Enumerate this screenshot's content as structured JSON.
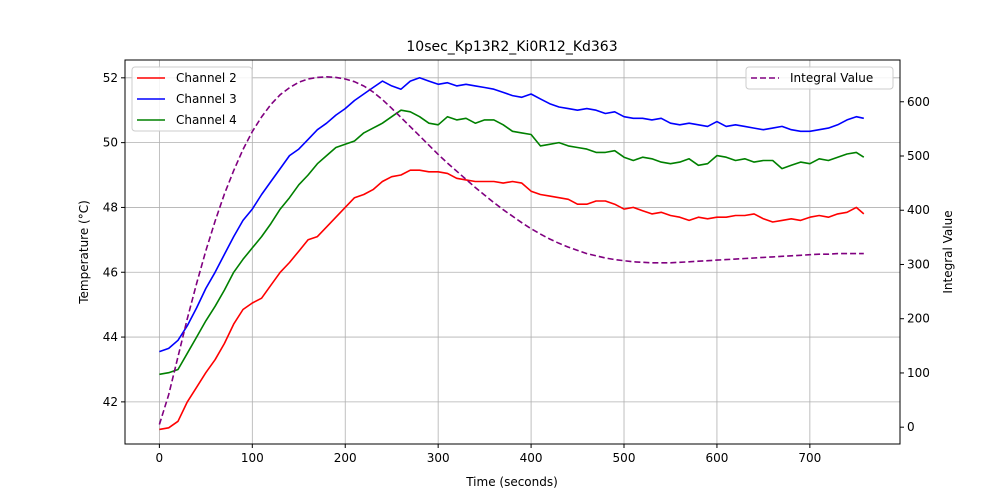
{
  "chart_data": {
    "type": "line",
    "title": "10sec_Kp13R2_Ki0R12_Kd363",
    "xlabel": "Time (seconds)",
    "ylabel": "Temperature (°C)",
    "y2label": "Integral Value",
    "xlim": [
      -37,
      797
    ],
    "ylim": [
      40.7,
      52.55
    ],
    "y2lim": [
      -31,
      677
    ],
    "xticks": [
      0,
      100,
      200,
      300,
      400,
      500,
      600,
      700
    ],
    "yticks": [
      42,
      44,
      46,
      48,
      50,
      52
    ],
    "y2ticks": [
      0,
      100,
      200,
      300,
      400,
      500,
      600
    ],
    "grid": true,
    "legend_left": "upper-left",
    "legend_right": "upper-right",
    "series": [
      {
        "name": "Channel 2",
        "axis": "left",
        "color": "#ff0000",
        "style": "solid",
        "x": [
          0,
          10,
          20,
          30,
          40,
          50,
          60,
          70,
          80,
          90,
          100,
          110,
          120,
          130,
          140,
          150,
          160,
          170,
          180,
          190,
          200,
          210,
          220,
          230,
          240,
          250,
          260,
          270,
          280,
          290,
          300,
          310,
          320,
          330,
          340,
          350,
          360,
          370,
          380,
          390,
          400,
          410,
          420,
          430,
          440,
          450,
          460,
          470,
          480,
          490,
          500,
          510,
          520,
          530,
          540,
          550,
          560,
          570,
          580,
          590,
          600,
          610,
          620,
          630,
          640,
          650,
          660,
          670,
          680,
          690,
          700,
          710,
          720,
          730,
          740,
          750,
          758
        ],
        "y": [
          41.15,
          41.2,
          41.4,
          42.0,
          42.45,
          42.9,
          43.3,
          43.8,
          44.4,
          44.85,
          45.05,
          45.2,
          45.6,
          46.0,
          46.3,
          46.65,
          47.0,
          47.1,
          47.4,
          47.7,
          48.0,
          48.3,
          48.4,
          48.55,
          48.8,
          48.95,
          49.0,
          49.15,
          49.15,
          49.1,
          49.1,
          49.05,
          48.9,
          48.85,
          48.8,
          48.8,
          48.8,
          48.75,
          48.8,
          48.75,
          48.5,
          48.4,
          48.35,
          48.3,
          48.25,
          48.1,
          48.1,
          48.2,
          48.2,
          48.1,
          47.95,
          48.0,
          47.9,
          47.8,
          47.85,
          47.75,
          47.7,
          47.6,
          47.7,
          47.65,
          47.7,
          47.7,
          47.75,
          47.75,
          47.8,
          47.65,
          47.55,
          47.6,
          47.65,
          47.6,
          47.7,
          47.75,
          47.7,
          47.8,
          47.85,
          48.0,
          47.8
        ]
      },
      {
        "name": "Channel 3",
        "axis": "left",
        "color": "#0000ff",
        "style": "solid",
        "x": [
          0,
          10,
          20,
          30,
          40,
          50,
          60,
          70,
          80,
          90,
          100,
          110,
          120,
          130,
          140,
          150,
          160,
          170,
          180,
          190,
          200,
          210,
          220,
          230,
          240,
          250,
          260,
          270,
          280,
          290,
          300,
          310,
          320,
          330,
          340,
          350,
          360,
          370,
          380,
          390,
          400,
          410,
          420,
          430,
          440,
          450,
          460,
          470,
          480,
          490,
          500,
          510,
          520,
          530,
          540,
          550,
          560,
          570,
          580,
          590,
          600,
          610,
          620,
          630,
          640,
          650,
          660,
          670,
          680,
          690,
          700,
          710,
          720,
          730,
          740,
          750,
          758
        ],
        "y": [
          43.55,
          43.65,
          43.9,
          44.35,
          44.9,
          45.5,
          46.0,
          46.55,
          47.1,
          47.6,
          47.95,
          48.4,
          48.8,
          49.2,
          49.6,
          49.8,
          50.1,
          50.4,
          50.6,
          50.85,
          51.05,
          51.3,
          51.5,
          51.7,
          51.9,
          51.75,
          51.65,
          51.9,
          52.0,
          51.9,
          51.8,
          51.85,
          51.75,
          51.8,
          51.75,
          51.7,
          51.65,
          51.55,
          51.45,
          51.4,
          51.5,
          51.35,
          51.2,
          51.1,
          51.05,
          51.0,
          51.05,
          51.0,
          50.9,
          50.95,
          50.8,
          50.75,
          50.75,
          50.7,
          50.75,
          50.6,
          50.55,
          50.6,
          50.55,
          50.5,
          50.65,
          50.5,
          50.55,
          50.5,
          50.45,
          50.4,
          50.45,
          50.5,
          50.4,
          50.35,
          50.35,
          50.4,
          50.45,
          50.55,
          50.7,
          50.8,
          50.75
        ]
      },
      {
        "name": "Channel 4",
        "axis": "left",
        "color": "#008000",
        "style": "solid",
        "x": [
          0,
          10,
          20,
          30,
          40,
          50,
          60,
          70,
          80,
          90,
          100,
          110,
          120,
          130,
          140,
          150,
          160,
          170,
          180,
          190,
          200,
          210,
          220,
          230,
          240,
          250,
          260,
          270,
          280,
          290,
          300,
          310,
          320,
          330,
          340,
          350,
          360,
          370,
          380,
          390,
          400,
          410,
          420,
          430,
          440,
          450,
          460,
          470,
          480,
          490,
          500,
          510,
          520,
          530,
          540,
          550,
          560,
          570,
          580,
          590,
          600,
          610,
          620,
          630,
          640,
          650,
          660,
          670,
          680,
          690,
          700,
          710,
          720,
          730,
          740,
          750,
          758
        ],
        "y": [
          42.85,
          42.9,
          43.0,
          43.5,
          44.0,
          44.5,
          44.95,
          45.45,
          46.0,
          46.4,
          46.75,
          47.1,
          47.5,
          47.95,
          48.3,
          48.7,
          49.0,
          49.35,
          49.6,
          49.85,
          49.95,
          50.05,
          50.3,
          50.45,
          50.6,
          50.8,
          51.0,
          50.95,
          50.8,
          50.6,
          50.55,
          50.8,
          50.7,
          50.75,
          50.6,
          50.7,
          50.7,
          50.55,
          50.35,
          50.3,
          50.25,
          49.9,
          49.95,
          50.0,
          49.9,
          49.85,
          49.8,
          49.7,
          49.7,
          49.75,
          49.55,
          49.45,
          49.55,
          49.5,
          49.4,
          49.35,
          49.4,
          49.5,
          49.3,
          49.35,
          49.6,
          49.55,
          49.45,
          49.5,
          49.4,
          49.45,
          49.45,
          49.2,
          49.3,
          49.4,
          49.35,
          49.5,
          49.45,
          49.55,
          49.65,
          49.7,
          49.55
        ]
      },
      {
        "name": "Integral Value",
        "axis": "right",
        "color": "#800080",
        "style": "dashed",
        "x": [
          0,
          10,
          20,
          30,
          40,
          50,
          60,
          70,
          80,
          90,
          100,
          110,
          120,
          130,
          140,
          150,
          160,
          170,
          180,
          190,
          200,
          210,
          220,
          230,
          240,
          250,
          260,
          270,
          280,
          290,
          300,
          310,
          320,
          330,
          340,
          350,
          360,
          370,
          380,
          390,
          400,
          410,
          420,
          430,
          440,
          450,
          460,
          470,
          480,
          490,
          500,
          510,
          520,
          530,
          540,
          550,
          560,
          570,
          580,
          590,
          600,
          610,
          620,
          630,
          640,
          650,
          660,
          670,
          680,
          690,
          700,
          710,
          720,
          730,
          740,
          750,
          758
        ],
        "y": [
          5,
          60,
          130,
          200,
          265,
          325,
          380,
          430,
          473,
          512,
          545,
          572,
          595,
          613,
          626,
          636,
          642,
          645,
          646,
          645,
          642,
          637,
          629,
          618,
          604,
          588,
          571,
          554,
          537,
          520,
          503,
          487,
          472,
          457,
          442,
          428,
          414,
          401,
          389,
          377,
          366,
          356,
          347,
          339,
          332,
          326,
          320,
          316,
          312,
          309,
          307,
          305,
          304,
          303,
          303,
          303,
          304,
          305,
          306,
          307,
          308,
          309,
          310,
          311,
          312,
          313,
          314,
          315,
          316,
          317,
          318,
          319,
          319,
          320,
          320,
          320,
          320
        ]
      }
    ]
  }
}
